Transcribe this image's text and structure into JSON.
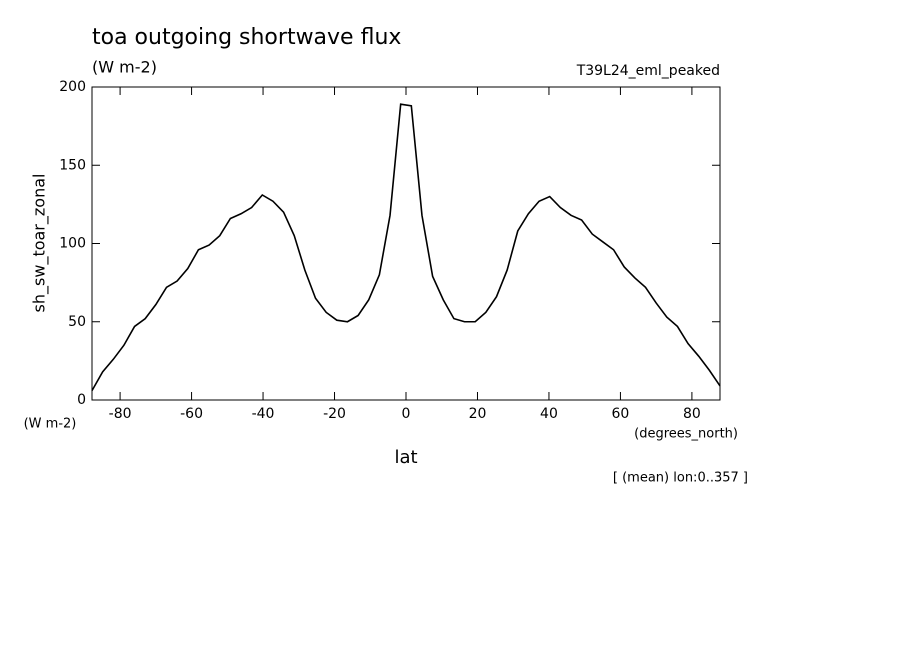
{
  "chart_data": {
    "type": "line",
    "title": "toa outgoing shortwave flux",
    "subtitle": "(W m-2)",
    "dataset": "T39L24_eml_peaked",
    "ylabel": "sh_sw_toar_zonal",
    "yunits": "(W m-2)",
    "xlabel": "lat",
    "xunits": "(degrees_north)",
    "note": "[ (mean) lon:0..357 ]",
    "x": [
      -87.86,
      -84.88,
      -81.9,
      -78.93,
      -75.95,
      -72.97,
      -69.99,
      -67.01,
      -64.04,
      -61.06,
      -58.08,
      -55.1,
      -52.12,
      -49.14,
      -46.17,
      -43.19,
      -40.21,
      -37.23,
      -34.25,
      -31.27,
      -28.3,
      -25.32,
      -22.34,
      -19.36,
      -16.38,
      -13.4,
      -10.43,
      -7.45,
      -4.47,
      -1.49,
      1.49,
      4.47,
      7.45,
      10.43,
      13.4,
      16.38,
      19.36,
      22.34,
      25.32,
      28.3,
      31.27,
      34.25,
      37.23,
      40.21,
      43.19,
      46.17,
      49.14,
      52.12,
      55.1,
      58.08,
      61.06,
      64.04,
      67.01,
      69.99,
      72.97,
      75.95,
      78.93,
      81.9,
      84.88,
      87.86
    ],
    "series": [
      {
        "name": "sh_sw_toar_zonal",
        "color": "#000000",
        "values": [
          6,
          18,
          26,
          35,
          47,
          52,
          61,
          72,
          76,
          84,
          96,
          99,
          105,
          116,
          119,
          123,
          131,
          127,
          120,
          105,
          83,
          65,
          56,
          51,
          50,
          54,
          64,
          80,
          118,
          189,
          188,
          118,
          79,
          64,
          52,
          50,
          50,
          56,
          66,
          83,
          108,
          119,
          127,
          130,
          123,
          118,
          115,
          106,
          101,
          96,
          85,
          78,
          72,
          62,
          53,
          47,
          36,
          28,
          19,
          9
        ]
      }
    ],
    "xlim": [
      -87.86,
      87.86
    ],
    "xticks": [
      -80,
      -60,
      -40,
      -20,
      0,
      20,
      40,
      60,
      80
    ],
    "ylim": [
      0,
      200
    ],
    "yticks": [
      0,
      50,
      100,
      150,
      200
    ]
  }
}
